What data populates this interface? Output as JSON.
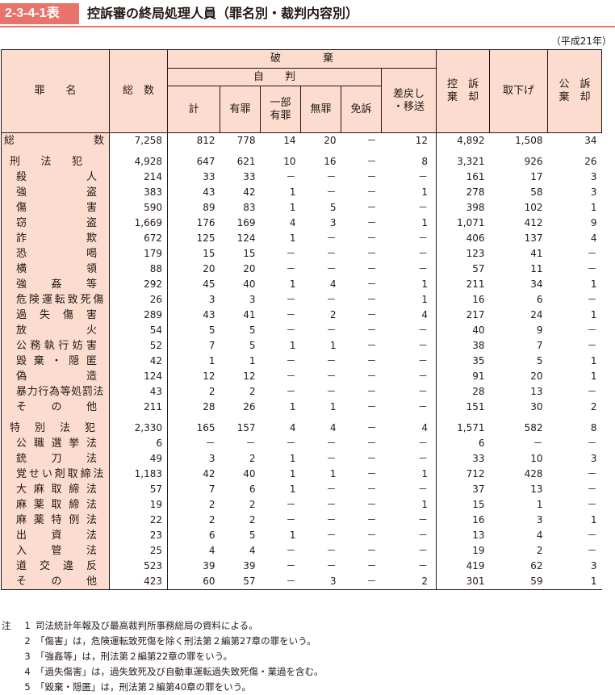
{
  "header": {
    "badge": "2-3-4-1表",
    "title": "控訴審の終局処理人員（罪名別・裁判内容別）",
    "era": "（平成21年）"
  },
  "table": {
    "headers": {
      "crime": "罪　　名",
      "total": "総　数",
      "haki": "破　　　　棄",
      "jihan": "自　　判",
      "kei": "計",
      "yuzai": "有罪",
      "ichibu1": "一部",
      "ichibu2": "有罪",
      "muzai": "無罪",
      "menso": "免訴",
      "sashi1": "差戻し",
      "sashi2": "・移送",
      "kikyaku1": "控　訴",
      "kikyaku2": "棄　却",
      "torisage": "取下げ",
      "koso1": "公　訴",
      "koso2": "棄　却"
    },
    "rows": [
      {
        "name": "総　　　　数",
        "sub": false,
        "v": [
          "7,258",
          "812",
          "778",
          "14",
          "20",
          "－",
          "12",
          "4,892",
          "1,508",
          "34"
        ]
      },
      {
        "gap": true
      },
      {
        "name": "刑　法　犯",
        "sub": false,
        "indent": true,
        "v": [
          "4,928",
          "647",
          "621",
          "10",
          "16",
          "－",
          "8",
          "3,321",
          "926",
          "26"
        ]
      },
      {
        "name": "殺　　　人",
        "sub": true,
        "v": [
          "214",
          "33",
          "33",
          "－",
          "－",
          "－",
          "－",
          "161",
          "17",
          "3"
        ]
      },
      {
        "name": "強　　　盗",
        "sub": true,
        "v": [
          "383",
          "43",
          "42",
          "1",
          "－",
          "－",
          "1",
          "278",
          "58",
          "3"
        ]
      },
      {
        "name": "傷　　　害",
        "sub": true,
        "v": [
          "590",
          "89",
          "83",
          "1",
          "5",
          "－",
          "－",
          "398",
          "102",
          "1"
        ]
      },
      {
        "name": "窃　　　盗",
        "sub": true,
        "v": [
          "1,669",
          "176",
          "169",
          "4",
          "3",
          "－",
          "1",
          "1,071",
          "412",
          "9"
        ]
      },
      {
        "name": "詐　　　欺",
        "sub": true,
        "v": [
          "672",
          "125",
          "124",
          "1",
          "－",
          "－",
          "－",
          "406",
          "137",
          "4"
        ]
      },
      {
        "name": "恐　　　喝",
        "sub": true,
        "v": [
          "179",
          "15",
          "15",
          "－",
          "－",
          "－",
          "－",
          "123",
          "41",
          "－"
        ]
      },
      {
        "name": "横　　　領",
        "sub": true,
        "v": [
          "88",
          "20",
          "20",
          "－",
          "－",
          "－",
          "－",
          "57",
          "11",
          "－"
        ]
      },
      {
        "name": "強　姦　等",
        "sub": true,
        "v": [
          "292",
          "45",
          "40",
          "1",
          "4",
          "－",
          "1",
          "211",
          "34",
          "1"
        ]
      },
      {
        "name": "危険運転致死傷",
        "sub": true,
        "v": [
          "26",
          "3",
          "3",
          "－",
          "－",
          "－",
          "1",
          "16",
          "6",
          "－"
        ]
      },
      {
        "name": "過　失　傷　害",
        "sub": true,
        "v": [
          "289",
          "43",
          "41",
          "－",
          "2",
          "－",
          "4",
          "217",
          "24",
          "1"
        ]
      },
      {
        "name": "放　　　火",
        "sub": true,
        "v": [
          "54",
          "5",
          "5",
          "－",
          "－",
          "－",
          "－",
          "40",
          "9",
          "－"
        ]
      },
      {
        "name": "公務執行妨害",
        "sub": true,
        "v": [
          "52",
          "7",
          "5",
          "1",
          "1",
          "－",
          "－",
          "38",
          "7",
          "－"
        ]
      },
      {
        "name": "毀棄・隠匿",
        "sub": true,
        "v": [
          "42",
          "1",
          "1",
          "－",
          "－",
          "－",
          "－",
          "35",
          "5",
          "1"
        ]
      },
      {
        "name": "偽　　　造",
        "sub": true,
        "v": [
          "124",
          "12",
          "12",
          "－",
          "－",
          "－",
          "－",
          "91",
          "20",
          "1"
        ]
      },
      {
        "name": "暴力行為等処罰法",
        "sub": true,
        "v": [
          "43",
          "2",
          "2",
          "－",
          "－",
          "－",
          "－",
          "28",
          "13",
          "－"
        ]
      },
      {
        "name": "そ　の　他",
        "sub": true,
        "v": [
          "211",
          "28",
          "26",
          "1",
          "1",
          "－",
          "－",
          "151",
          "30",
          "2"
        ]
      },
      {
        "gap": true
      },
      {
        "name": "特　別　法　犯",
        "sub": false,
        "indent": true,
        "v": [
          "2,330",
          "165",
          "157",
          "4",
          "4",
          "－",
          "4",
          "1,571",
          "582",
          "8"
        ]
      },
      {
        "name": "公職選挙法",
        "sub": true,
        "v": [
          "6",
          "－",
          "－",
          "－",
          "－",
          "－",
          "－",
          "6",
          "－",
          "－"
        ]
      },
      {
        "name": "銃　刀　法",
        "sub": true,
        "v": [
          "49",
          "3",
          "2",
          "1",
          "－",
          "－",
          "－",
          "33",
          "10",
          "3"
        ]
      },
      {
        "name": "覚せい剤取締法",
        "sub": true,
        "v": [
          "1,183",
          "42",
          "40",
          "1",
          "1",
          "－",
          "1",
          "712",
          "428",
          "－"
        ]
      },
      {
        "name": "大麻取締法",
        "sub": true,
        "v": [
          "57",
          "7",
          "6",
          "1",
          "－",
          "－",
          "－",
          "37",
          "13",
          "－"
        ]
      },
      {
        "name": "麻薬取締法",
        "sub": true,
        "v": [
          "19",
          "2",
          "2",
          "－",
          "－",
          "－",
          "1",
          "15",
          "1",
          "－"
        ]
      },
      {
        "name": "麻薬特例法",
        "sub": true,
        "v": [
          "22",
          "2",
          "2",
          "－",
          "－",
          "－",
          "－",
          "16",
          "3",
          "1"
        ]
      },
      {
        "name": "出　資　法",
        "sub": true,
        "v": [
          "23",
          "6",
          "5",
          "1",
          "－",
          "－",
          "－",
          "13",
          "4",
          "－"
        ]
      },
      {
        "name": "入　管　法",
        "sub": true,
        "v": [
          "25",
          "4",
          "4",
          "－",
          "－",
          "－",
          "－",
          "19",
          "2",
          "－"
        ]
      },
      {
        "name": "道　交　違　反",
        "sub": true,
        "v": [
          "523",
          "39",
          "39",
          "－",
          "－",
          "－",
          "－",
          "419",
          "62",
          "3"
        ]
      },
      {
        "name": "そ　の　他",
        "sub": true,
        "v": [
          "423",
          "60",
          "57",
          "－",
          "3",
          "－",
          "2",
          "301",
          "59",
          "1"
        ]
      }
    ]
  },
  "notes": {
    "label": "注",
    "items": [
      {
        "no": "1",
        "text": "司法統計年報及び最高裁判所事務総局の資料による。"
      },
      {
        "no": "2",
        "text": "「傷害」は，危険運転致死傷を除く刑法第２編第27章の罪をいう。"
      },
      {
        "no": "3",
        "text": "「強姦等」は，刑法第２編第22章の罪をいう。"
      },
      {
        "no": "4",
        "text": "「過失傷害」は，過失致死及び自動車運転過失致死傷・業過を含む。"
      },
      {
        "no": "5",
        "text": "「毀棄・隠匿」は，刑法第２編第40章の罪をいう。"
      }
    ]
  }
}
